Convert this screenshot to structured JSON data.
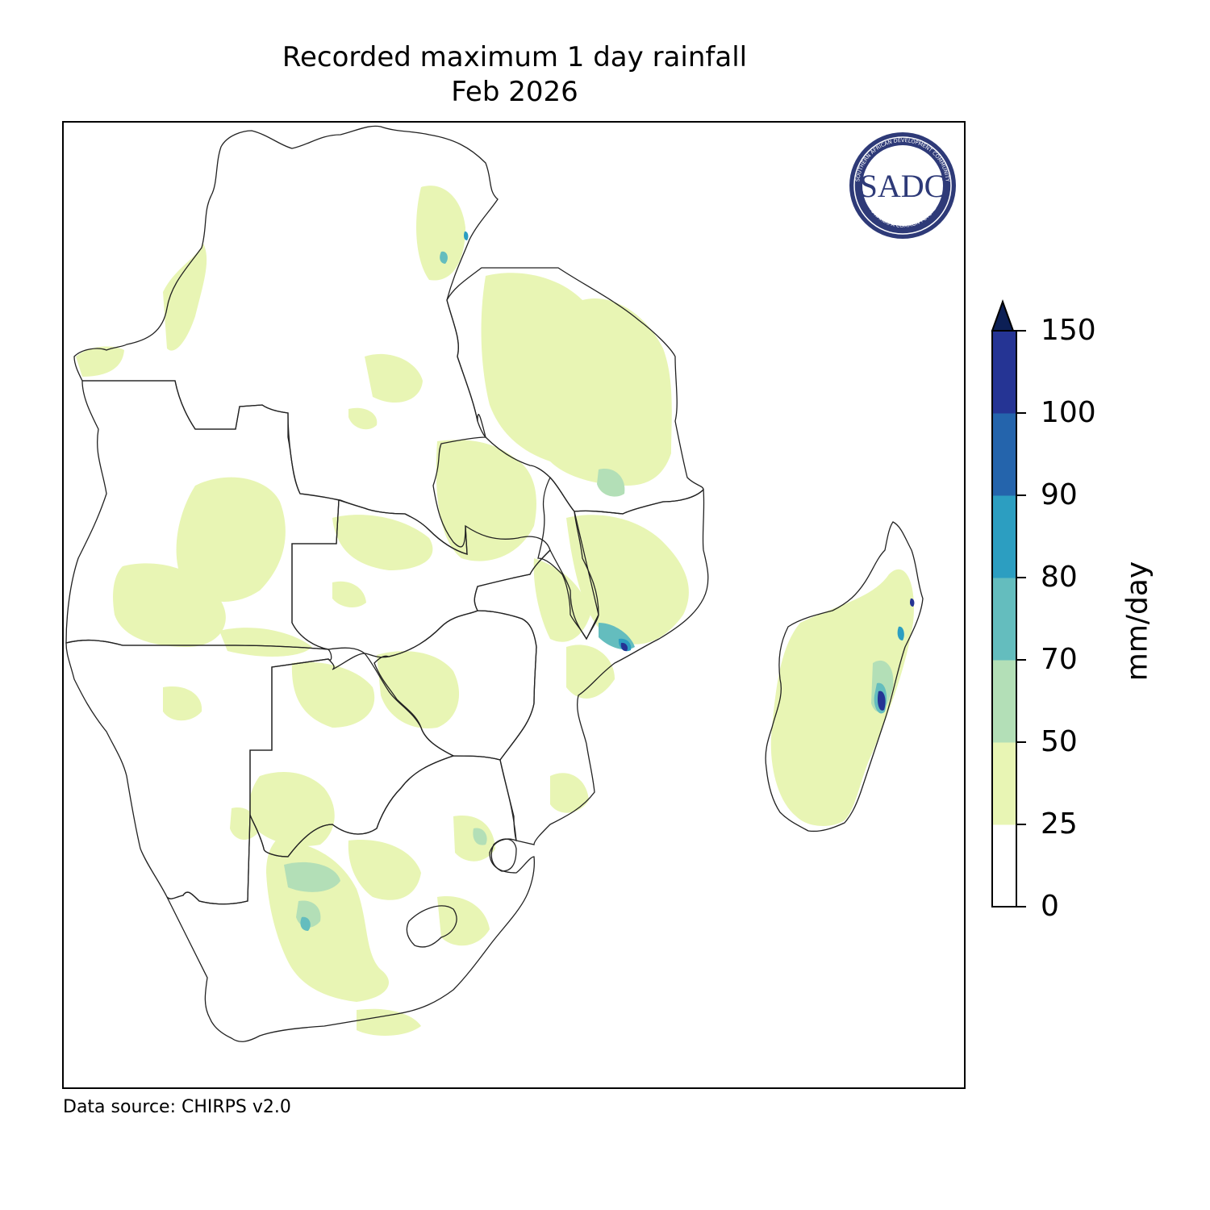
{
  "title": {
    "line1": "Recorded maximum 1 day rainfall",
    "line2": "Feb 2026"
  },
  "source": "Data source: CHIRPS v2.0",
  "logo": {
    "text": "SADC",
    "ring_text": "SOUTHERN AFRICAN DEVELOPMENT COMMUNITY",
    "ring_text_bottom": "TOWARDS A COMMON FUTURE",
    "color": "#2e3a78"
  },
  "colorbar": {
    "unit": "mm/day",
    "extend": "max",
    "levels": [
      0,
      25,
      50,
      70,
      80,
      90,
      100,
      150
    ],
    "tick_labels": [
      "0",
      "25",
      "50",
      "70",
      "80",
      "90",
      "100",
      "150"
    ],
    "colors": [
      "#ffffff",
      "#e8f5b4",
      "#b3dfb7",
      "#64bdbe",
      "#2c9ec1",
      "#2464ac",
      "#253494"
    ],
    "over_color": "#0c1f55"
  },
  "map": {
    "region": "Southern Africa (SADC)",
    "border_color": "#222222",
    "dominant_class": "0-25 mm/day",
    "notes": [
      "25-50 mm/day patches widespread",
      "higher values (up to 100-150) on east coast of Madagascar and central Mozambique coast"
    ]
  }
}
